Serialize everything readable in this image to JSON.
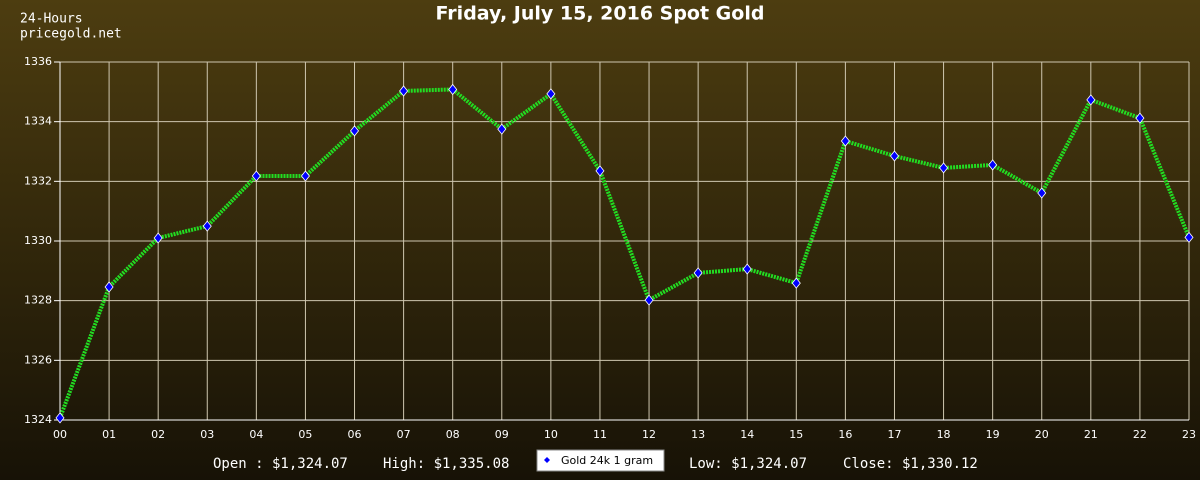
{
  "chart_data": {
    "type": "line",
    "title": "Friday, July 15, 2016 Spot Gold",
    "header": [
      "24-Hours",
      "pricegold.net"
    ],
    "categories": [
      "00",
      "01",
      "02",
      "03",
      "04",
      "05",
      "06",
      "07",
      "08",
      "09",
      "10",
      "11",
      "12",
      "13",
      "14",
      "15",
      "16",
      "17",
      "18",
      "19",
      "20",
      "21",
      "22",
      "23"
    ],
    "series": [
      {
        "name": "Gold 24k 1 gram",
        "color": "#22dd22",
        "marker_color": "#0000ff",
        "values": [
          1324.07,
          1328.46,
          1330.1,
          1330.5,
          1332.18,
          1332.18,
          1333.69,
          1335.03,
          1335.08,
          1333.75,
          1334.93,
          1332.35,
          1328.02,
          1328.93,
          1329.06,
          1328.59,
          1333.35,
          1332.85,
          1332.45,
          1332.55,
          1331.61,
          1334.73,
          1334.12,
          1330.12
        ]
      }
    ],
    "ylim": [
      1324,
      1336
    ],
    "yticks": [
      1324,
      1326,
      1328,
      1330,
      1332,
      1334,
      1336
    ],
    "grid": true,
    "summary": [
      "Open : $1,324.07",
      "High: $1,335.08",
      "Low: $1,324.07",
      "Close: $1,330.12"
    ]
  }
}
